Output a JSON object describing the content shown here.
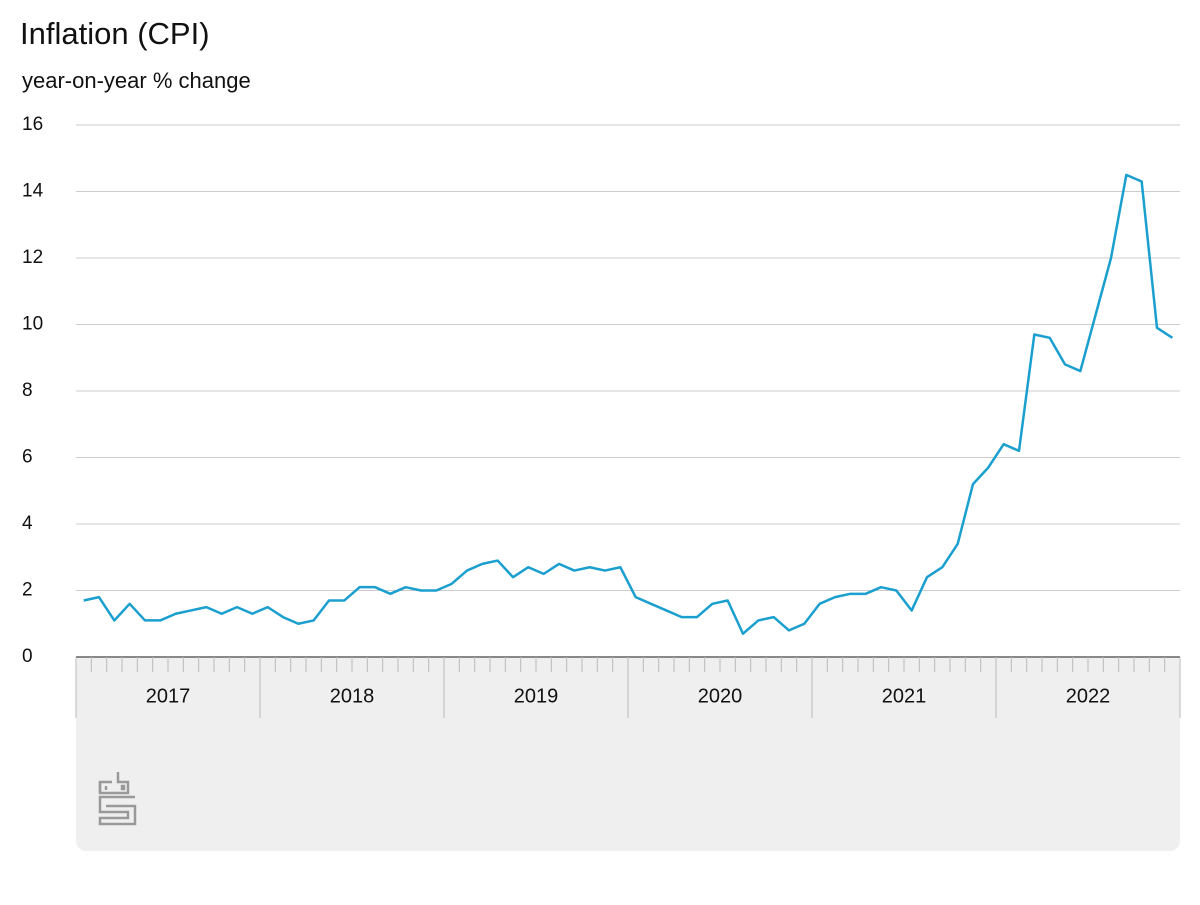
{
  "chart_data": {
    "type": "line",
    "title": "Inflation (CPI)",
    "subtitle": "year-on-year % change",
    "categories": [
      "2017",
      null,
      null,
      null,
      null,
      null,
      null,
      null,
      null,
      null,
      null,
      null,
      "2018",
      null,
      null,
      null,
      null,
      null,
      null,
      null,
      null,
      null,
      null,
      null,
      "2019",
      null,
      null,
      null,
      null,
      null,
      null,
      null,
      null,
      null,
      null,
      null,
      "2020",
      null,
      null,
      null,
      null,
      null,
      null,
      null,
      null,
      null,
      null,
      null,
      "2021",
      null,
      null,
      null,
      null,
      null,
      null,
      null,
      null,
      null,
      null,
      null,
      "2022",
      null,
      null,
      null,
      null,
      null,
      null,
      null,
      null,
      null,
      null,
      null
    ],
    "values": [
      1.7,
      1.8,
      1.1,
      1.6,
      1.1,
      1.1,
      1.3,
      1.4,
      1.5,
      1.3,
      1.5,
      1.3,
      1.5,
      1.2,
      1.0,
      1.1,
      1.7,
      1.7,
      2.1,
      2.1,
      1.9,
      2.1,
      2.0,
      2.0,
      2.2,
      2.6,
      2.8,
      2.9,
      2.4,
      2.7,
      2.5,
      2.8,
      2.6,
      2.7,
      2.6,
      2.7,
      1.8,
      1.6,
      1.4,
      1.2,
      1.2,
      1.6,
      1.7,
      0.7,
      1.1,
      1.2,
      0.8,
      1.0,
      1.6,
      1.8,
      1.9,
      1.9,
      2.1,
      2.0,
      1.4,
      2.4,
      2.7,
      3.4,
      5.2,
      5.7,
      6.4,
      6.2,
      9.7,
      9.6,
      8.8,
      8.6,
      10.3,
      12.0,
      14.5,
      14.3,
      9.9,
      9.6
    ],
    "color": "#1a9fcf",
    "ylim": [
      0,
      16
    ],
    "yticks": [
      0,
      2,
      4,
      6,
      8,
      10,
      12,
      14,
      16
    ],
    "grid": true
  }
}
